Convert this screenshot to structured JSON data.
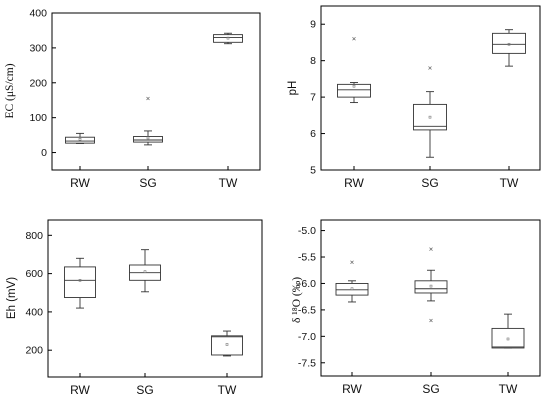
{
  "chart_data": [
    {
      "type": "box",
      "ylabel": "EC (μS/cm)",
      "ylabel_font": "serif",
      "ylim": [
        -50,
        400
      ],
      "yticks": [
        0,
        100,
        200,
        300,
        400
      ],
      "ytick_labels": [
        "0",
        "100",
        "200",
        "300",
        "400"
      ],
      "categories": [
        "RW",
        "SG",
        "TW"
      ],
      "boxes": [
        {
          "whisker_low": 26,
          "q1": 27,
          "median": 33,
          "mean": 38,
          "q3": 44,
          "whisker_high": 55,
          "outliers": []
        },
        {
          "whisker_low": 22,
          "q1": 30,
          "median": 36,
          "mean": 42,
          "q3": 46,
          "whisker_high": 62,
          "outliers": [
            155
          ]
        },
        {
          "whisker_low": 312,
          "q1": 316,
          "median": 330,
          "mean": 328,
          "q3": 338,
          "whisker_high": 342,
          "outliers": []
        }
      ]
    },
    {
      "type": "box",
      "ylabel": "pH",
      "ylabel_font": "sans",
      "ylim": [
        5,
        9.5
      ],
      "yticks": [
        5,
        6,
        7,
        8,
        9
      ],
      "ytick_labels": [
        "5",
        "6",
        "7",
        "8",
        "9"
      ],
      "categories": [
        "RW",
        "SG",
        "TW"
      ],
      "boxes": [
        {
          "whisker_low": 6.85,
          "q1": 7.0,
          "median": 7.2,
          "mean": 7.3,
          "q3": 7.35,
          "whisker_high": 7.4,
          "outliers": [
            8.6
          ]
        },
        {
          "whisker_low": 5.35,
          "q1": 6.1,
          "median": 6.2,
          "mean": 6.45,
          "q3": 6.8,
          "whisker_high": 7.15,
          "outliers": [
            7.8
          ]
        },
        {
          "whisker_low": 7.85,
          "q1": 8.2,
          "median": 8.45,
          "mean": 8.45,
          "q3": 8.75,
          "whisker_high": 8.85,
          "outliers": []
        }
      ]
    },
    {
      "type": "box",
      "ylabel": "Eh (mV)",
      "ylabel_font": "sans",
      "ylim": [
        60,
        880
      ],
      "yticks": [
        200,
        400,
        600,
        800
      ],
      "ytick_labels": [
        "200",
        "400",
        "600",
        "800"
      ],
      "categories": [
        "RW",
        "SG",
        "TW"
      ],
      "boxes": [
        {
          "whisker_low": 420,
          "q1": 475,
          "median": 565,
          "mean": 565,
          "q3": 635,
          "whisker_high": 680,
          "outliers": []
        },
        {
          "whisker_low": 505,
          "q1": 565,
          "median": 605,
          "mean": 610,
          "q3": 645,
          "whisker_high": 725,
          "outliers": []
        },
        {
          "whisker_low": 170,
          "q1": 175,
          "median": 270,
          "mean": 230,
          "q3": 275,
          "whisker_high": 300,
          "outliers": []
        }
      ]
    },
    {
      "type": "box",
      "ylabel": "δ ¹⁸O (‰)",
      "ylabel_font": "serif",
      "ylim": [
        -7.75,
        -4.8
      ],
      "yticks": [
        -7.5,
        -7.0,
        -6.5,
        -6.0,
        -5.5,
        -5.0
      ],
      "ytick_labels": [
        "-7.5",
        "-7.0",
        "-6.5",
        "-6.0",
        "-5.5",
        "-5.0"
      ],
      "categories": [
        "RW",
        "SG",
        "TW"
      ],
      "boxes": [
        {
          "whisker_low": -6.35,
          "q1": -6.22,
          "median": -6.12,
          "mean": -6.1,
          "q3": -6.0,
          "whisker_high": -5.95,
          "outliers": [
            -5.6
          ]
        },
        {
          "whisker_low": -6.33,
          "q1": -6.18,
          "median": -6.1,
          "mean": -6.05,
          "q3": -5.95,
          "whisker_high": -5.75,
          "outliers": [
            -5.35,
            -6.7
          ]
        },
        {
          "whisker_low": -7.22,
          "q1": -7.22,
          "median": -7.2,
          "mean": -7.05,
          "q3": -6.85,
          "whisker_high": -6.58,
          "outliers": []
        }
      ]
    }
  ]
}
